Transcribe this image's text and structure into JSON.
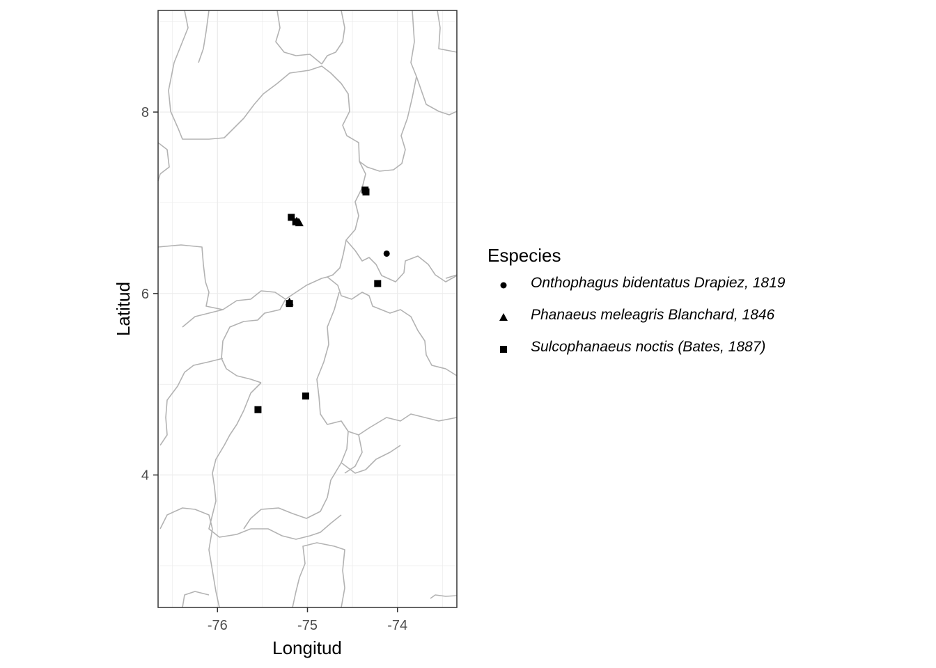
{
  "chart_data": {
    "type": "scatter",
    "xlabel": "Longitud",
    "ylabel": "Latitud",
    "xlim": [
      -76.66,
      -73.34
    ],
    "ylim": [
      2.54,
      9.12
    ],
    "x_ticks": [
      -76,
      -75,
      -74
    ],
    "y_ticks": [
      4,
      6,
      8
    ],
    "x_tick_labels": [
      "-76",
      "-75",
      "-74"
    ],
    "y_tick_labels": [
      "4",
      "6",
      "8"
    ],
    "grid": true,
    "background": "map with gray administrative boundary lines",
    "legend": {
      "title": "Especies",
      "position": "right"
    },
    "series": [
      {
        "name": "Onthophagus bidentatus Drapiez, 1819",
        "shape": "circle",
        "points": [
          [
            -74.12,
            6.44
          ]
        ]
      },
      {
        "name": "Phanaeus meleagris Blanchard, 1846",
        "shape": "triangle",
        "points": [
          [
            -75.09,
            6.78
          ],
          [
            -75.12,
            6.8
          ],
          [
            -75.2,
            5.91
          ]
        ]
      },
      {
        "name": "Sulcophanaeus noctis (Bates, 1887)",
        "shape": "square",
        "points": [
          [
            -75.18,
            6.84
          ],
          [
            -75.13,
            6.79
          ],
          [
            -74.35,
            7.12
          ],
          [
            -74.36,
            7.14
          ],
          [
            -74.22,
            6.11
          ],
          [
            -75.2,
            5.89
          ],
          [
            -75.02,
            4.87
          ],
          [
            -75.55,
            4.72
          ]
        ]
      }
    ]
  },
  "colors": {
    "points": "#000000",
    "boundaries": "#b3b3b3",
    "grid": "#ebebeb",
    "axis_text": "#4d4d4d"
  }
}
